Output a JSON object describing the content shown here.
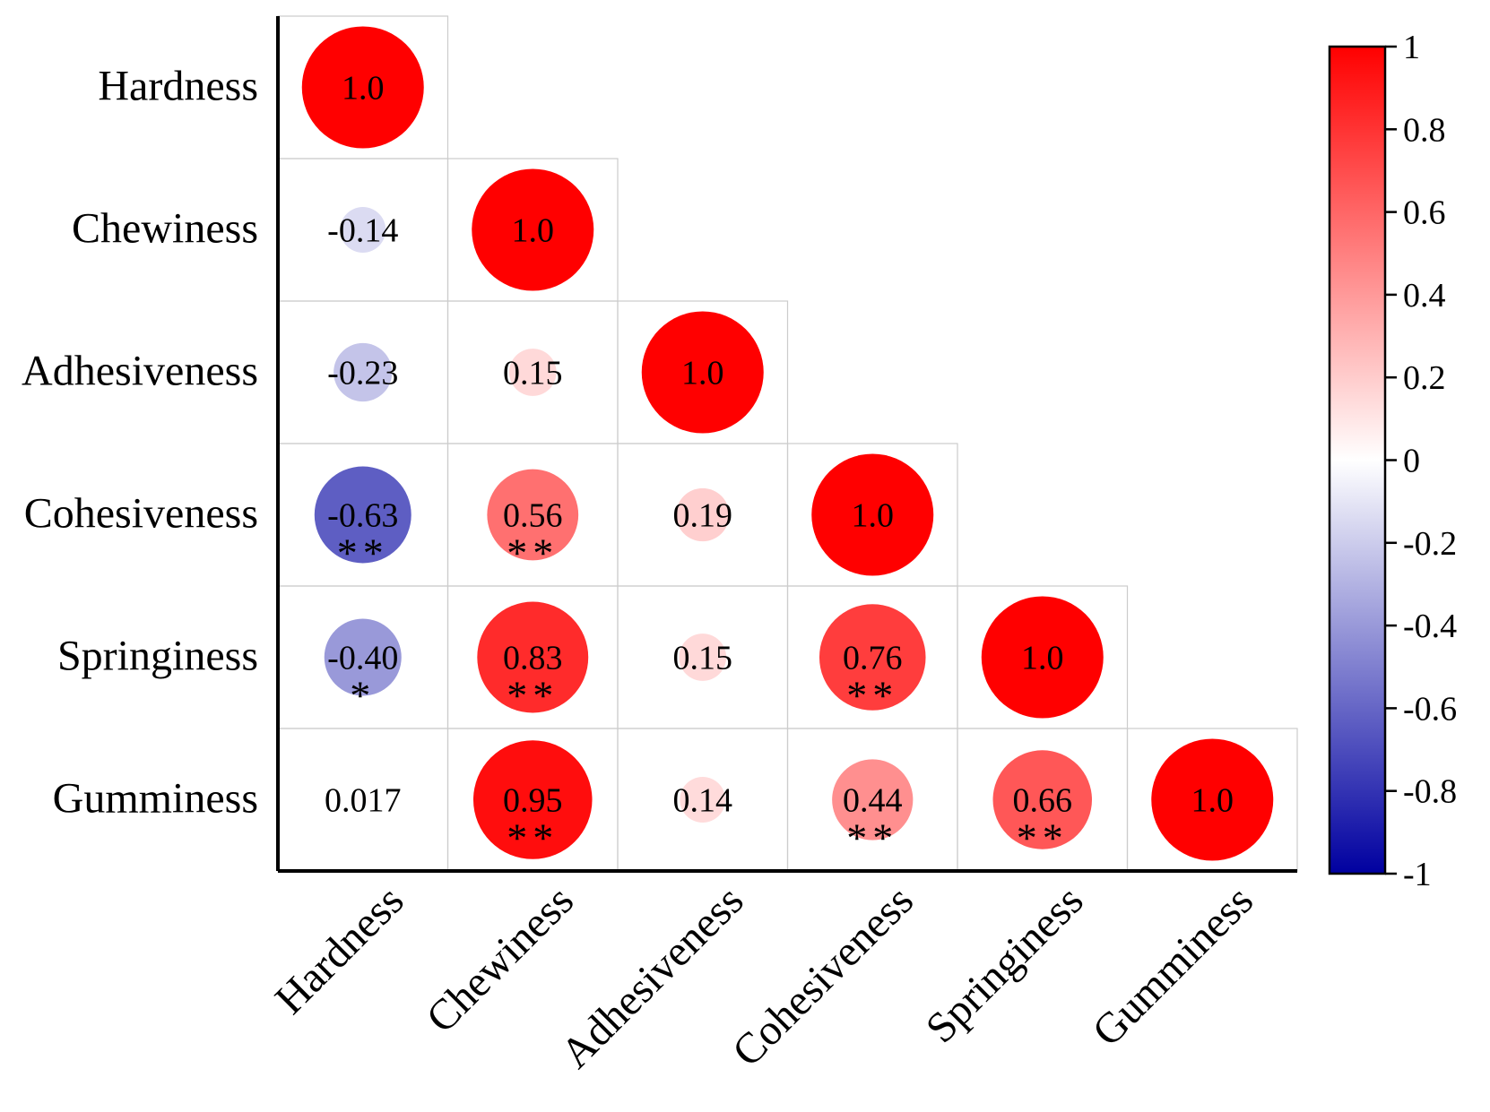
{
  "chart_data": {
    "type": "correlation-matrix",
    "variables": [
      "Hardness",
      "Chewiness",
      "Adhesiveness",
      "Cohesiveness",
      "Springiness",
      "Gumminess"
    ],
    "cells": [
      {
        "row": 0,
        "col": 0,
        "value": 1.0,
        "label": "1.0",
        "sig": ""
      },
      {
        "row": 1,
        "col": 0,
        "value": -0.14,
        "label": "-0.14",
        "sig": ""
      },
      {
        "row": 1,
        "col": 1,
        "value": 1.0,
        "label": "1.0",
        "sig": ""
      },
      {
        "row": 2,
        "col": 0,
        "value": -0.23,
        "label": "-0.23",
        "sig": ""
      },
      {
        "row": 2,
        "col": 1,
        "value": 0.15,
        "label": "0.15",
        "sig": ""
      },
      {
        "row": 2,
        "col": 2,
        "value": 1.0,
        "label": "1.0",
        "sig": ""
      },
      {
        "row": 3,
        "col": 0,
        "value": -0.63,
        "label": "-0.63",
        "sig": "**"
      },
      {
        "row": 3,
        "col": 1,
        "value": 0.56,
        "label": "0.56",
        "sig": "**"
      },
      {
        "row": 3,
        "col": 2,
        "value": 0.19,
        "label": "0.19",
        "sig": ""
      },
      {
        "row": 3,
        "col": 3,
        "value": 1.0,
        "label": "1.0",
        "sig": ""
      },
      {
        "row": 4,
        "col": 0,
        "value": -0.4,
        "label": "-0.40",
        "sig": "*"
      },
      {
        "row": 4,
        "col": 1,
        "value": 0.83,
        "label": "0.83",
        "sig": "**"
      },
      {
        "row": 4,
        "col": 2,
        "value": 0.15,
        "label": "0.15",
        "sig": ""
      },
      {
        "row": 4,
        "col": 3,
        "value": 0.76,
        "label": "0.76",
        "sig": "**"
      },
      {
        "row": 4,
        "col": 4,
        "value": 1.0,
        "label": "1.0",
        "sig": ""
      },
      {
        "row": 5,
        "col": 0,
        "value": 0.017,
        "label": "0.017",
        "sig": ""
      },
      {
        "row": 5,
        "col": 1,
        "value": 0.95,
        "label": "0.95",
        "sig": "**"
      },
      {
        "row": 5,
        "col": 2,
        "value": 0.14,
        "label": "0.14",
        "sig": ""
      },
      {
        "row": 5,
        "col": 3,
        "value": 0.44,
        "label": "0.44",
        "sig": "**"
      },
      {
        "row": 5,
        "col": 4,
        "value": 0.66,
        "label": "0.66",
        "sig": "**"
      },
      {
        "row": 5,
        "col": 5,
        "value": 1.0,
        "label": "1.0",
        "sig": ""
      }
    ],
    "colorbar": {
      "range": [
        -1,
        1
      ],
      "ticks": [
        {
          "value": 1,
          "label": "1"
        },
        {
          "value": 0.8,
          "label": "0.8"
        },
        {
          "value": 0.6,
          "label": "0.6"
        },
        {
          "value": 0.4,
          "label": "0.4"
        },
        {
          "value": 0.2,
          "label": "0.2"
        },
        {
          "value": 0,
          "label": "0"
        },
        {
          "value": -0.2,
          "label": "-0.2"
        },
        {
          "value": -0.4,
          "label": "-0.4"
        },
        {
          "value": -0.6,
          "label": "-0.6"
        },
        {
          "value": -0.8,
          "label": "-0.8"
        },
        {
          "value": -1,
          "label": "-1"
        }
      ],
      "colors": {
        "positive": "#ff0000",
        "zero": "#ffffff",
        "negative": "#0000a0"
      }
    },
    "grid_color": "#cccccc",
    "axis_color": "#000000"
  }
}
